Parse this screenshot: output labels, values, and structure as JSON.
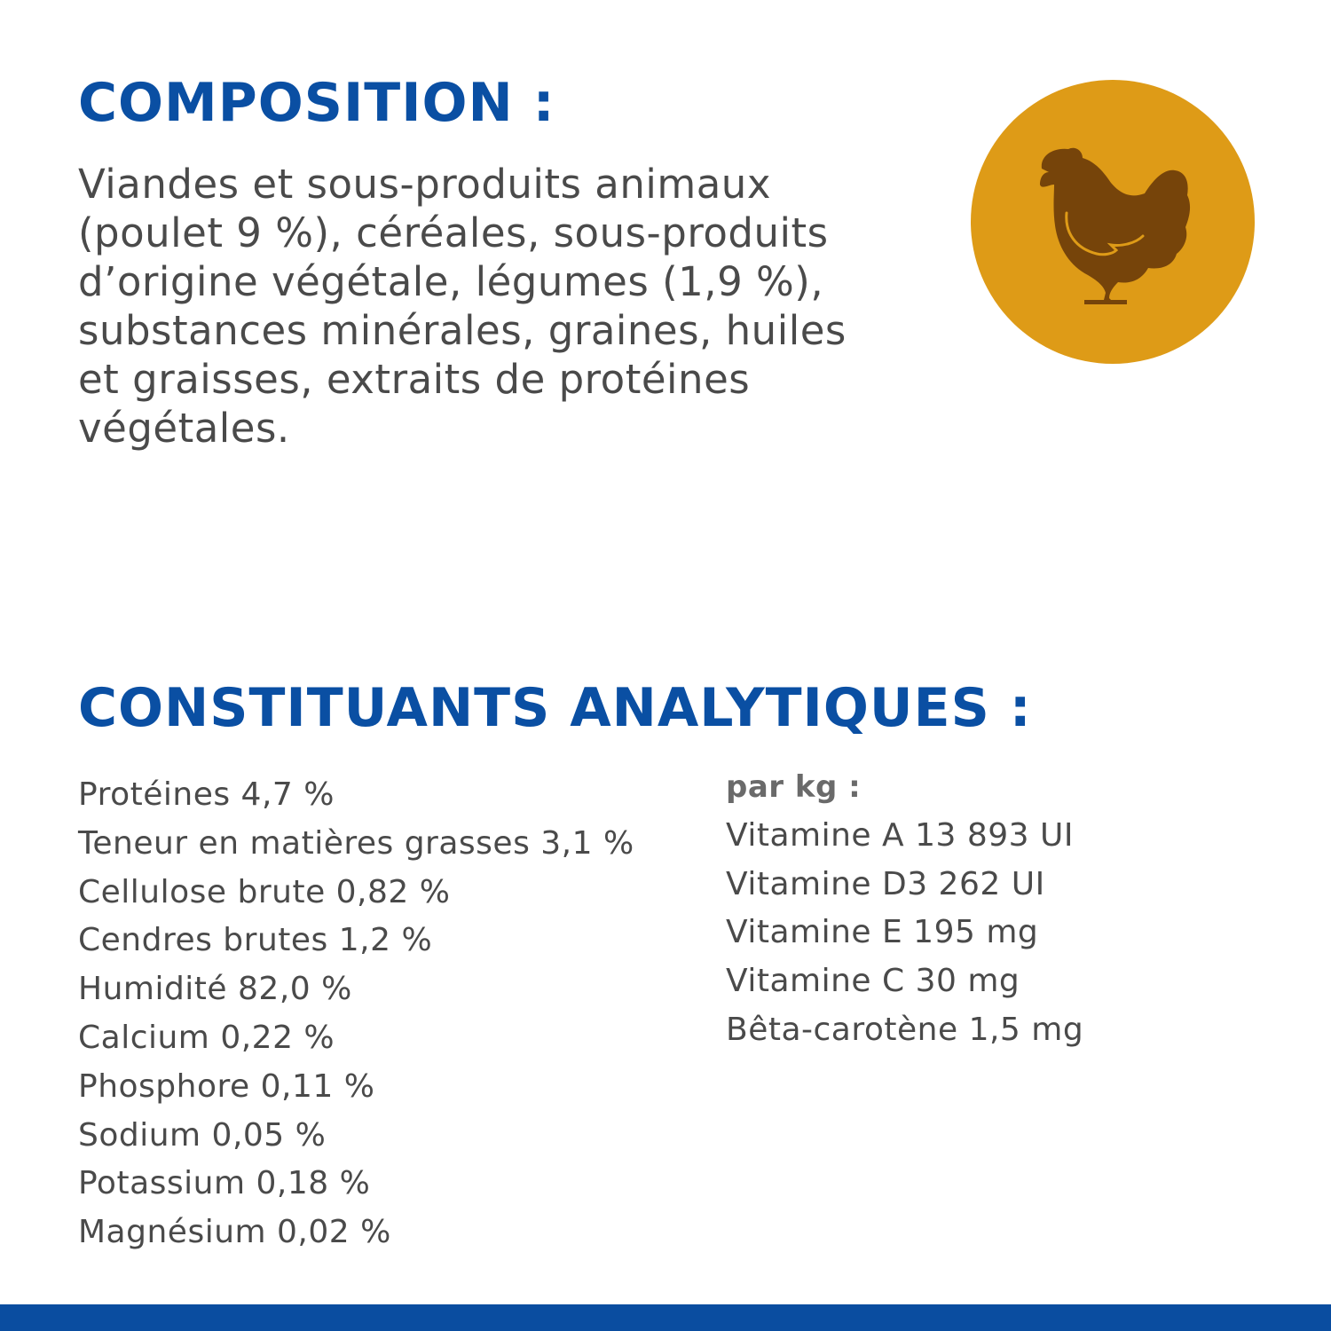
{
  "composition": {
    "title": "COMPOSITION :",
    "lines": [
      "Viandes et sous-produits animaux",
      "(poulet 9 %), céréales, sous-produits",
      "d’origine végétale, légumes (1,9 %),",
      "substances minérales, graines, huiles",
      "et graisses, extraits de protéines",
      "végétales."
    ],
    "icon": "chicken-icon"
  },
  "analytical": {
    "title": "CONSTITUANTS ANALYTIQUES :",
    "left": [
      "Protéines 4,7 %",
      "Teneur en matières grasses 3,1 %",
      "Cellulose brute 0,82 %",
      "Cendres brutes 1,2 %",
      "Humidité 82,0 %",
      "Calcium 0,22 %",
      "Phosphore 0,11 %",
      "Sodium 0,05 %",
      "Potassium 0,18 %",
      "Magnésium 0,02 %"
    ],
    "right_heading": "par kg :",
    "right": [
      "Vitamine A 13 893 UI",
      "Vitamine D3 262 UI",
      "Vitamine E 195 mg",
      "Vitamine C 30 mg",
      "Bêta-carotène 1,5 mg"
    ]
  },
  "colors": {
    "heading": "#0a4fa3",
    "text": "#4a4a4a",
    "circle": "#de9b17",
    "chicken": "#76440a",
    "bar": "#0a4da0"
  }
}
